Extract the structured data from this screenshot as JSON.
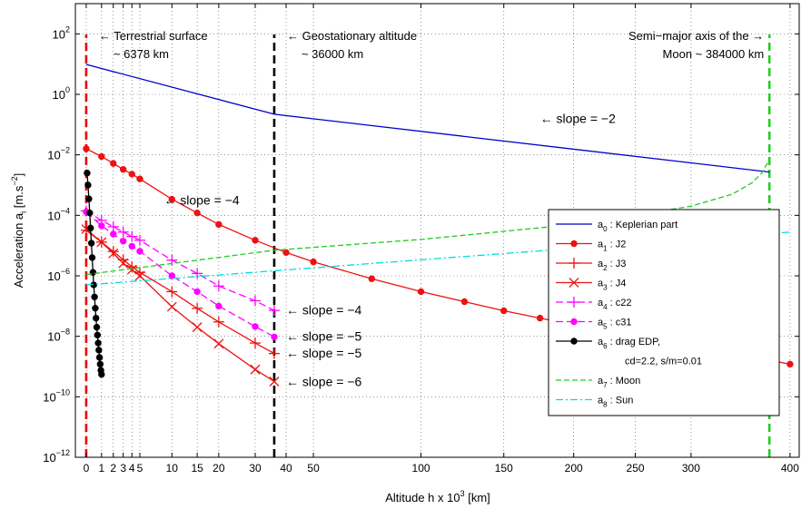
{
  "chart_data": {
    "type": "line",
    "title": "",
    "xlabel": "Altitude h x 10",
    "xlabel_sup": "3",
    "xlabel_unit": " [km]",
    "ylabel": "Acceleration a",
    "ylabel_sub": "i",
    "ylabel_unit": " [m.s",
    "ylabel_unit_sup": "−2",
    "ylabel_unit_end": "]",
    "x_scale": "square-root",
    "y_scale": "log",
    "xlim": [
      -0.5,
      410
    ],
    "ylim": [
      1e-12,
      1000
    ],
    "grid": true,
    "xticks": [
      0,
      1,
      2,
      3,
      4,
      5,
      10,
      15,
      20,
      30,
      40,
      50,
      100,
      150,
      200,
      250,
      300,
      400
    ],
    "xtick_labels": [
      "0",
      "1",
      "2",
      "3",
      "4",
      "5",
      "10",
      "15",
      "20",
      "30",
      "40",
      "50",
      "100",
      "150",
      "200",
      "250",
      "300",
      "400"
    ],
    "yticks": [
      1e-12,
      1e-10,
      1e-08,
      1e-06,
      0.0001,
      0.01,
      1,
      100
    ],
    "ytick_labels": [
      {
        "base": "10",
        "exp": "−12"
      },
      {
        "base": "10",
        "exp": "−10"
      },
      {
        "base": "10",
        "exp": "−8"
      },
      {
        "base": "10",
        "exp": "−6"
      },
      {
        "base": "10",
        "exp": "−4"
      },
      {
        "base": "10",
        "exp": "−2"
      },
      {
        "base": "10",
        "exp": "0"
      },
      {
        "base": "10",
        "exp": "2"
      }
    ],
    "vertical_lines": [
      {
        "x": 0,
        "color": "#ee0000",
        "label_lines": [
          "← Terrestrial surface",
          "~ 6378 km"
        ],
        "label_side": "right"
      },
      {
        "x": 36,
        "color": "#000000",
        "label_lines": [
          "← Geostationary altitude",
          "~ 36000 km"
        ],
        "label_side": "right"
      },
      {
        "x": 378,
        "color": "#22cc22",
        "label_lines": [
          "Semi−major axis of the →",
          "Moon ~ 384000 km"
        ],
        "label_side": "left"
      }
    ],
    "annotations": [
      {
        "text": "← slope = −2",
        "x": 175,
        "y": 0.16
      },
      {
        "text": "← slope = −4",
        "x": 8.6,
        "y": 0.00032
      },
      {
        "text": "← slope = −4",
        "x": 40,
        "y": 7.5e-08
      },
      {
        "text": "← slope = −5",
        "x": 40,
        "y": 1e-08
      },
      {
        "text": "← slope = −5",
        "x": 40,
        "y": 2.8e-09
      },
      {
        "text": "← slope = −6",
        "x": 40,
        "y": 3.2e-10
      }
    ],
    "series": [
      {
        "name": "Keplerian part",
        "sym": "a",
        "sub": "0",
        "color": "#0000cc",
        "dash": "",
        "marker": "none",
        "x": [
          0,
          36,
          378
        ],
        "y": [
          9.8,
          0.22,
          0.0027
        ]
      },
      {
        "name": "J2",
        "sym": "a",
        "sub": "1",
        "color": "#ee1111",
        "dash": "",
        "marker": "dot",
        "x": [
          0,
          1,
          2,
          3,
          4,
          5,
          10,
          15,
          20,
          30,
          40,
          50,
          75,
          100,
          125,
          150,
          175,
          200,
          225,
          250,
          275,
          300,
          325,
          350,
          375,
          400
        ],
        "y": [
          0.016,
          0.0088,
          0.0052,
          0.0033,
          0.0023,
          0.0016,
          0.00034,
          0.00012,
          5e-05,
          1.5e-05,
          5.9e-06,
          2.9e-06,
          8e-07,
          3e-07,
          1.4e-07,
          7e-08,
          4e-08,
          2.4e-08,
          1.5e-08,
          9.8e-09,
          6.5e-09,
          4.5e-09,
          3.2e-09,
          2.3e-09,
          1.7e-09,
          1.2e-09
        ]
      },
      {
        "name": "J3",
        "sym": "a",
        "sub": "2",
        "color": "#ee1111",
        "dash": "",
        "marker": "plus",
        "x": [
          0,
          1,
          2,
          3,
          4,
          5,
          10,
          15,
          20,
          30,
          36
        ],
        "y": [
          3.2e-05,
          1.3e-05,
          6.4e-06,
          3.4e-06,
          2e-06,
          1.3e-06,
          3e-07,
          8.4e-08,
          3e-08,
          6e-09,
          2.7e-09
        ]
      },
      {
        "name": "J4",
        "sym": "a",
        "sub": "3",
        "color": "#ee1111",
        "dash": "",
        "marker": "x",
        "x": [
          0,
          1,
          2,
          3,
          4,
          5,
          10,
          15,
          20,
          30,
          36
        ],
        "y": [
          3.5e-05,
          1.3e-05,
          5.5e-06,
          2.6e-06,
          1.6e-06,
          1e-06,
          9.5e-08,
          2e-08,
          5.7e-09,
          8e-10,
          3.2e-10
        ]
      },
      {
        "name": "c22",
        "sym": "a",
        "sub": "4",
        "color": "#ff00ff",
        "dash": "8,4",
        "marker": "plus",
        "x": [
          0,
          1,
          2,
          3,
          4,
          5,
          10,
          15,
          20,
          30,
          36
        ],
        "y": [
          0.00014,
          6.8e-05,
          4.2e-05,
          2.8e-05,
          2e-05,
          1.5e-05,
          3.3e-06,
          1.2e-06,
          4.6e-07,
          1.5e-07,
          7.2e-08
        ]
      },
      {
        "name": "c31",
        "sym": "a",
        "sub": "5",
        "color": "#ff00ff",
        "dash": "8,4",
        "marker": "dot",
        "x": [
          0,
          1,
          2,
          3,
          4,
          5,
          10,
          15,
          20,
          30,
          36
        ],
        "y": [
          0.00013,
          4.5e-05,
          2.4e-05,
          1.4e-05,
          9.5e-06,
          6.5e-06,
          1e-06,
          3e-07,
          1e-07,
          2.1e-08,
          9.5e-09
        ]
      },
      {
        "name": "drag EDP,",
        "name2": "cd=2.2, s/m=0.01",
        "sym": "a",
        "sub": "6",
        "color": "#000000",
        "dash": "",
        "marker": "dot",
        "x": [
          0.05,
          0.1,
          0.15,
          0.2,
          0.25,
          0.3,
          0.35,
          0.4,
          0.45,
          0.5,
          0.55,
          0.6,
          0.65,
          0.7,
          0.75,
          0.8,
          0.85,
          0.9,
          0.95,
          1.0
        ],
        "y": [
          0.0025,
          0.001,
          0.00035,
          0.00012,
          3.8e-05,
          1.2e-05,
          4e-06,
          1.3e-06,
          5e-07,
          2e-07,
          8.5e-08,
          4e-08,
          2e-08,
          1.1e-08,
          6e-09,
          3.5e-09,
          2e-09,
          1.2e-09,
          7.5e-10,
          5.5e-10
        ]
      },
      {
        "name": "Moon",
        "sym": "a",
        "sub": "7",
        "color": "#22cc22",
        "dash": "6,3",
        "marker": "none",
        "x": [
          0,
          36,
          100,
          200,
          300,
          340,
          360,
          370,
          378
        ],
        "y": [
          1.1e-06,
          7e-06,
          1.6e-05,
          5e-05,
          0.0002,
          0.0005,
          0.0012,
          0.0025,
          0.007
        ]
      },
      {
        "name": "Sun",
        "sym": "a",
        "sub": "8",
        "color": "#00dddd",
        "dash": "8,3,2,3",
        "marker": "none",
        "x": [
          0,
          400
        ],
        "y": [
          5e-07,
          2.8e-05
        ]
      }
    ],
    "legend": "bottom-right"
  }
}
